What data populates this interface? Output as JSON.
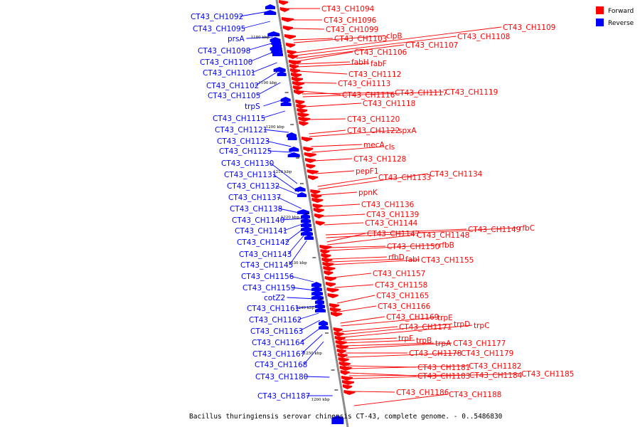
{
  "caption": "Bacillus thuringiensis serovar chinensis CT-43, complete genome. - 0..5486830",
  "legend": [
    {
      "label": "Forward",
      "color": "#ff0000"
    },
    {
      "label": "Reverse",
      "color": "#0000ff"
    }
  ],
  "colors": {
    "forward": "#ff0000",
    "reverse": "#0000ff",
    "axis": "#8c8c8c"
  },
  "ticks": [
    "1180 kbp",
    "1190 kbp",
    "1200 kbp",
    "1210 kbp",
    "1220 kbp",
    "1230 kbp",
    "1240 kbp",
    "1250 kbp",
    "1260 kbp"
  ],
  "reverse_genes": [
    "CT43_CH1092",
    "CT43_CH1095",
    "prsA",
    "CT43_CH1098",
    "CT43_CH1100",
    "CT43_CH1101",
    "CT43_CH1102",
    "CT43_CH1105",
    "trpS",
    "CT43_CH1115",
    "CT43_CH1121",
    "CT43_CH1123",
    "CT43_CH1125",
    "CT43_CH1130",
    "CT43_CH1131",
    "CT43_CH1132",
    "CT43_CH1137",
    "CT43_CH1138",
    "CT43_CH1140",
    "CT43_CH1141",
    "CT43_CH1142",
    "CT43_CH1143",
    "CT43_CH1145",
    "CT43_CH1156",
    "CT43_CH1159",
    "cotZ2",
    "CT43_CH1161",
    "CT43_CH1162",
    "CT43_CH1163",
    "CT43_CH1164",
    "CT43_CH1167",
    "CT43_CH1168",
    "CT43_CH1180",
    "CT43_CH1187"
  ],
  "forward_genes": [
    "CT43_CH1094",
    "CT43_CH1096",
    "CT43_CH1099",
    "CT43_CH1103",
    "clpB",
    "CT43_CH1109",
    "CT43_CH1108",
    "CT43_CH1107",
    "CT43_CH1106",
    "fabH",
    "fabF",
    "CT43_CH1112",
    "CT43_CH1113",
    "CT43_CH1116",
    "CT43_CH1117",
    "CT43_CH1119",
    "CT43_CH1118",
    "CT43_CH1120",
    "CT43_CH1122",
    "spxA",
    "mecA",
    "cls",
    "CT43_CH1128",
    "pepF1",
    "CT43_CH1133",
    "CT43_CH1134",
    "ppnK",
    "CT43_CH1136",
    "CT43_CH1139",
    "CT43_CH1144",
    "CT43_CH1149",
    "rfbC",
    "CT43_CH1147",
    "CT43_CH1148",
    "CT43_CH1150",
    "rfbB",
    "rfbD",
    "fabI",
    "CT43_CH1155",
    "CT43_CH1157",
    "CT43_CH1158",
    "CT43_CH1165",
    "CT43_CH1166",
    "CT43_CH1169",
    "trpE",
    "CT43_CH1171",
    "trpD",
    "trpC",
    "trpF",
    "trpB",
    "trpA",
    "CT43_CH1177",
    "CT43_CH1178",
    "CT43_CH1179",
    "CT43_CH1181",
    "CT43_CH1182",
    "CT43_CH1183",
    "CT43_CH1184",
    "CT43_CH1185",
    "CT43_CH1186",
    "CT43_CH1188"
  ]
}
